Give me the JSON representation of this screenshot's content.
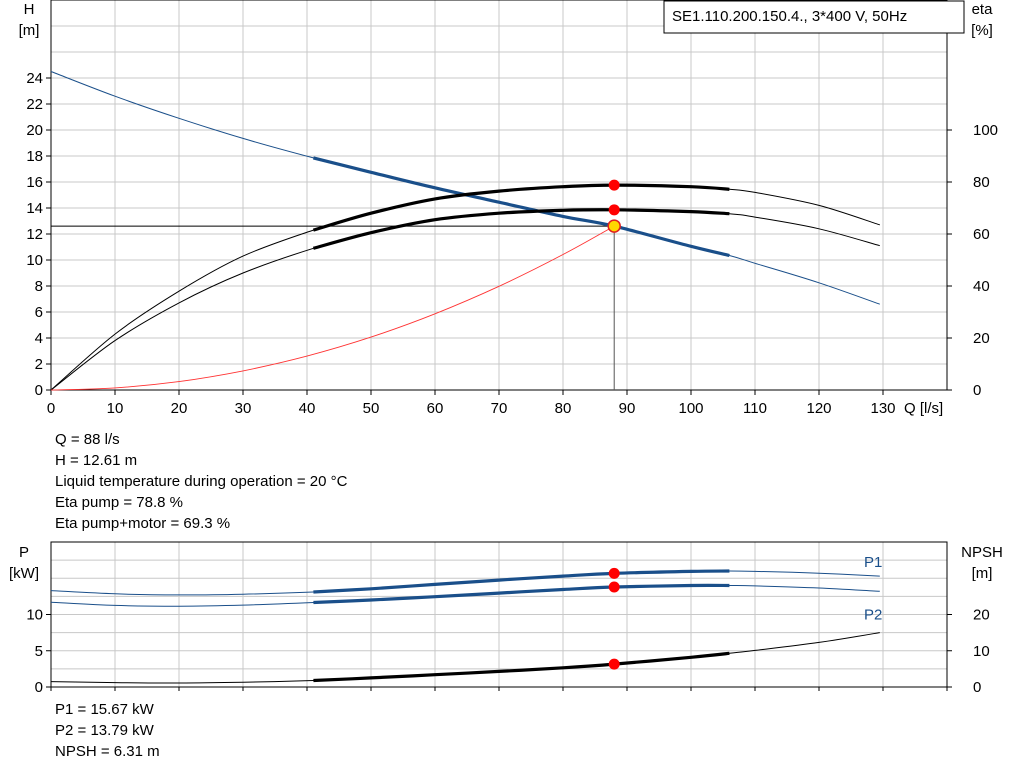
{
  "pump_model": "SE1.110.200.150.4., 3*400 V, 50Hz",
  "operating_point": {
    "q_line": "Q = 88 l/s",
    "h_line": "H = 12.61 m",
    "temp_line": "Liquid temperature during operation = 20 °C",
    "eta_pump_line": "Eta pump = 78.8 %",
    "eta_total_line": "Eta pump+motor = 69.3 %"
  },
  "power_point": {
    "p1_line": "P1 = 15.67 kW",
    "p2_line": "P2 = 13.79 kW",
    "npsh_line": "NPSH = 6.31 m"
  },
  "colors": {
    "grid": "#c8c8c8",
    "blue": "#1a4f8a",
    "black": "#000000",
    "red_point": "#ff0000",
    "system_curve": "#ff3333",
    "marker_yellow": "#ffd800"
  },
  "chart_data": [
    {
      "type": "line",
      "title": "",
      "xlabel": "Q [l/s]",
      "ylabel": [
        "H",
        "[m]"
      ],
      "ylabel_right": [
        "eta",
        "[%]"
      ],
      "xlim": [
        0,
        140
      ],
      "ylim": [
        0,
        30
      ],
      "y2lim": [
        0,
        150
      ],
      "x_ticks": [
        0,
        10,
        20,
        30,
        40,
        50,
        60,
        70,
        80,
        90,
        100,
        110,
        120,
        130
      ],
      "y_ticks": [
        0,
        2,
        4,
        6,
        8,
        10,
        12,
        14,
        16,
        18,
        20,
        22,
        24
      ],
      "y2_ticks": [
        0,
        20,
        40,
        60,
        80,
        100
      ],
      "grid": true,
      "operating_point": {
        "q": 88,
        "h": 12.61
      },
      "series": [
        {
          "name": "H",
          "axis": "left",
          "color": "#1a4f8a",
          "x": [
            0,
            10,
            20,
            30,
            41,
            50,
            60,
            70,
            80,
            88,
            100,
            106,
            110,
            120,
            129.5
          ],
          "y": [
            24.5,
            22.6,
            20.9,
            19.35,
            17.85,
            16.75,
            15.55,
            14.45,
            13.35,
            12.61,
            11.05,
            10.35,
            9.75,
            8.25,
            6.6
          ],
          "bold_range": [
            41,
            106
          ]
        },
        {
          "name": "Eta pump",
          "axis": "right",
          "color": "#000000",
          "x": [
            0,
            10,
            20,
            30,
            41,
            50,
            60,
            70,
            80,
            88,
            100,
            106,
            110,
            120,
            129.5
          ],
          "y": [
            0,
            21.5,
            38,
            51.5,
            61.5,
            68,
            73.5,
            76.5,
            78.2,
            78.8,
            78.2,
            77.2,
            76,
            71,
            63.5
          ],
          "bold_range": [
            41,
            106
          ]
        },
        {
          "name": "Eta pump+motor",
          "axis": "right",
          "color": "#000000",
          "x": [
            0,
            10,
            20,
            30,
            41,
            50,
            60,
            70,
            80,
            88,
            100,
            106,
            110,
            120,
            129.5
          ],
          "y": [
            0,
            19,
            33.5,
            45,
            54.5,
            60.5,
            65.5,
            68,
            69.1,
            69.3,
            68.6,
            67.8,
            66.5,
            62,
            55.5
          ],
          "bold_range": [
            41,
            106
          ]
        },
        {
          "name": "System curve",
          "axis": "left",
          "color": "#ff3333",
          "x": [
            0,
            10,
            20,
            30,
            40,
            50,
            60,
            70,
            80,
            88
          ],
          "y": [
            0,
            0.16,
            0.65,
            1.47,
            2.61,
            4.07,
            5.86,
            7.98,
            10.42,
            12.61
          ]
        }
      ],
      "points": [
        {
          "x": 88,
          "y": 12.61,
          "axis": "left",
          "style": "yellow"
        },
        {
          "x": 88,
          "y": 78.8,
          "axis": "right",
          "style": "red"
        },
        {
          "x": 88,
          "y": 69.3,
          "axis": "right",
          "style": "red"
        }
      ]
    },
    {
      "type": "line",
      "title": "",
      "xlabel": "",
      "ylabel": [
        "P",
        "[kW]"
      ],
      "ylabel_right": [
        "NPSH",
        "[m]"
      ],
      "xlim": [
        0,
        140
      ],
      "ylim": [
        0,
        20
      ],
      "y2lim": [
        0,
        40
      ],
      "y_ticks": [
        0,
        5,
        10
      ],
      "y2_ticks": [
        0,
        10,
        20
      ],
      "grid": true,
      "series": [
        {
          "name": "P1",
          "axis": "left",
          "color": "#1a4f8a",
          "label_shown": "P1",
          "x": [
            0,
            10,
            20,
            30,
            41,
            50,
            60,
            70,
            80,
            88,
            100,
            106,
            110,
            120,
            129.5
          ],
          "y": [
            13.3,
            12.85,
            12.7,
            12.8,
            13.1,
            13.55,
            14.15,
            14.75,
            15.3,
            15.67,
            15.95,
            16.0,
            15.95,
            15.7,
            15.3
          ],
          "bold_range": [
            41,
            106
          ]
        },
        {
          "name": "P2",
          "axis": "left",
          "color": "#1a4f8a",
          "label_shown": "P2",
          "x": [
            0,
            10,
            20,
            30,
            41,
            50,
            60,
            70,
            80,
            88,
            100,
            106,
            110,
            120,
            129.5
          ],
          "y": [
            11.7,
            11.25,
            11.15,
            11.3,
            11.65,
            12.0,
            12.45,
            12.95,
            13.45,
            13.79,
            14.0,
            14.0,
            13.95,
            13.65,
            13.2
          ],
          "bold_range": [
            41,
            106
          ]
        },
        {
          "name": "NPSH",
          "axis": "right",
          "color": "#000000",
          "x": [
            0,
            10,
            20,
            30,
            41,
            50,
            60,
            70,
            80,
            88,
            100,
            106,
            110,
            120,
            129.5
          ],
          "y": [
            1.5,
            1.2,
            1.1,
            1.3,
            1.8,
            2.5,
            3.4,
            4.3,
            5.3,
            6.31,
            8.2,
            9.3,
            10.1,
            12.3,
            15.0
          ],
          "bold_range": [
            41,
            106
          ]
        }
      ],
      "points": [
        {
          "x": 88,
          "y": 15.67,
          "axis": "left",
          "style": "red"
        },
        {
          "x": 88,
          "y": 13.79,
          "axis": "left",
          "style": "red"
        },
        {
          "x": 88,
          "y": 6.31,
          "axis": "right",
          "style": "red"
        }
      ]
    }
  ]
}
